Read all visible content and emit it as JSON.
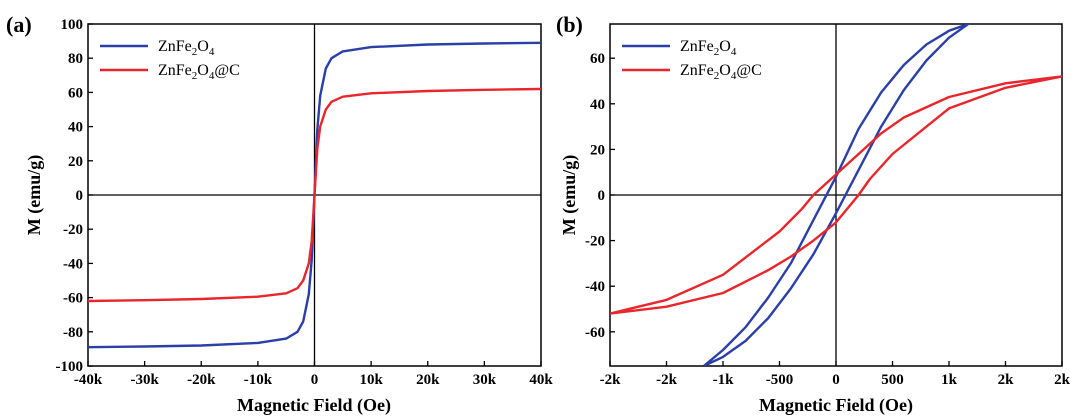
{
  "colors": {
    "series_blue": "#2b3fa8",
    "series_red": "#e8262b",
    "axis": "#000000"
  },
  "chart_data": [
    {
      "type": "line",
      "panel_label": "(a)",
      "xlabel": "Magnetic Field (Oe)",
      "ylabel": "M (emu/g)",
      "xlim": [
        -40000,
        40000
      ],
      "ylim": [
        -100,
        100
      ],
      "x_ticks": [
        -40000,
        -30000,
        -20000,
        -10000,
        0,
        10000,
        20000,
        30000,
        40000
      ],
      "x_tick_labels": [
        "-40k",
        "-30k",
        "-20k",
        "-10k",
        "0",
        "10k",
        "20k",
        "30k",
        "40k"
      ],
      "y_ticks": [
        -100,
        -80,
        -60,
        -40,
        -20,
        0,
        20,
        40,
        60,
        80,
        100
      ],
      "y_tick_labels": [
        "-100",
        "-80",
        "-60",
        "-40",
        "-20",
        "0",
        "20",
        "40",
        "60",
        "80",
        "100"
      ],
      "grid": false,
      "legend_position": "top-left",
      "series": [
        {
          "name": "ZnFe2O4",
          "legend_main": "ZnFe",
          "legend_sub1": "2",
          "legend_mid": "O",
          "legend_sub2": "4",
          "legend_tail": "",
          "color": "#2b3fa8",
          "x": [
            -40000,
            -30000,
            -20000,
            -10000,
            -5000,
            -3000,
            -2000,
            -1000,
            -500,
            0,
            500,
            1000,
            2000,
            3000,
            5000,
            10000,
            20000,
            30000,
            40000
          ],
          "y": [
            -89,
            -88.6,
            -88,
            -86.5,
            -84,
            -80,
            -74,
            -58,
            -38,
            0,
            38,
            58,
            74,
            80,
            84,
            86.5,
            88,
            88.6,
            89
          ]
        },
        {
          "name": "ZnFe2O4@C",
          "legend_main": "ZnFe",
          "legend_sub1": "2",
          "legend_mid": "O",
          "legend_sub2": "4",
          "legend_tail": "@C",
          "color": "#e8262b",
          "x": [
            -40000,
            -30000,
            -20000,
            -10000,
            -5000,
            -3000,
            -2000,
            -1000,
            -500,
            0,
            500,
            1000,
            2000,
            3000,
            5000,
            10000,
            20000,
            30000,
            40000
          ],
          "y": [
            -62,
            -61.5,
            -60.8,
            -59.5,
            -57.5,
            -54.5,
            -50,
            -40,
            -27,
            0,
            27,
            40,
            50,
            54.5,
            57.5,
            59.5,
            60.8,
            61.5,
            62
          ]
        }
      ]
    },
    {
      "type": "line",
      "panel_label": "(b)",
      "xlabel": "Magnetic Field (Oe)",
      "ylabel": "M (emu/g)",
      "xlim": [
        -2000,
        2000
      ],
      "ylim": [
        -75,
        75
      ],
      "x_ticks": [
        -2000,
        -1500,
        -1000,
        -500,
        0,
        500,
        1000,
        1500,
        2000
      ],
      "x_tick_labels": [
        "-2k",
        "-2k",
        "-1k",
        "-500",
        "0",
        "500",
        "1k",
        "2k",
        "2k"
      ],
      "y_ticks": [
        -60,
        -40,
        -20,
        0,
        20,
        40,
        60
      ],
      "y_tick_labels": [
        "-60",
        "-40",
        "-20",
        "0",
        "20",
        "40",
        "60"
      ],
      "grid": false,
      "legend_position": "top-left",
      "series": [
        {
          "name": "ZnFe2O4",
          "legend_main": "ZnFe",
          "legend_sub1": "2",
          "legend_mid": "O",
          "legend_sub2": "4",
          "legend_tail": "",
          "color": "#2b3fa8",
          "x": [
            -1170,
            -1000,
            -800,
            -600,
            -400,
            -200,
            0,
            200,
            400,
            600,
            800,
            1000,
            1170,
            1000,
            800,
            600,
            400,
            200,
            0,
            -200,
            -400,
            -600,
            -800,
            -1000,
            -1170
          ],
          "y": [
            -75,
            -71,
            -64,
            -54,
            -41,
            -26,
            -8,
            11,
            30,
            46,
            59,
            69,
            75,
            72,
            66,
            57,
            45,
            29,
            8,
            -11,
            -30,
            -45,
            -58,
            -68,
            -75
          ]
        },
        {
          "name": "ZnFe2O4@C",
          "legend_main": "ZnFe",
          "legend_sub1": "2",
          "legend_mid": "O",
          "legend_sub2": "4",
          "legend_tail": "@C",
          "color": "#e8262b",
          "x": [
            -2000,
            -1500,
            -1000,
            -500,
            -300,
            -200,
            0,
            200,
            400,
            600,
            1000,
            1500,
            2000,
            1500,
            1000,
            500,
            300,
            200,
            0,
            -200,
            -400,
            -600,
            -1000,
            -1500,
            -2000
          ],
          "y": [
            -52,
            -46,
            -35,
            -16,
            -6,
            0,
            9,
            18,
            27,
            34,
            43,
            49,
            52,
            47,
            38,
            18,
            7,
            0,
            -12,
            -20,
            -27,
            -33,
            -43,
            -49,
            -52
          ]
        }
      ]
    }
  ]
}
